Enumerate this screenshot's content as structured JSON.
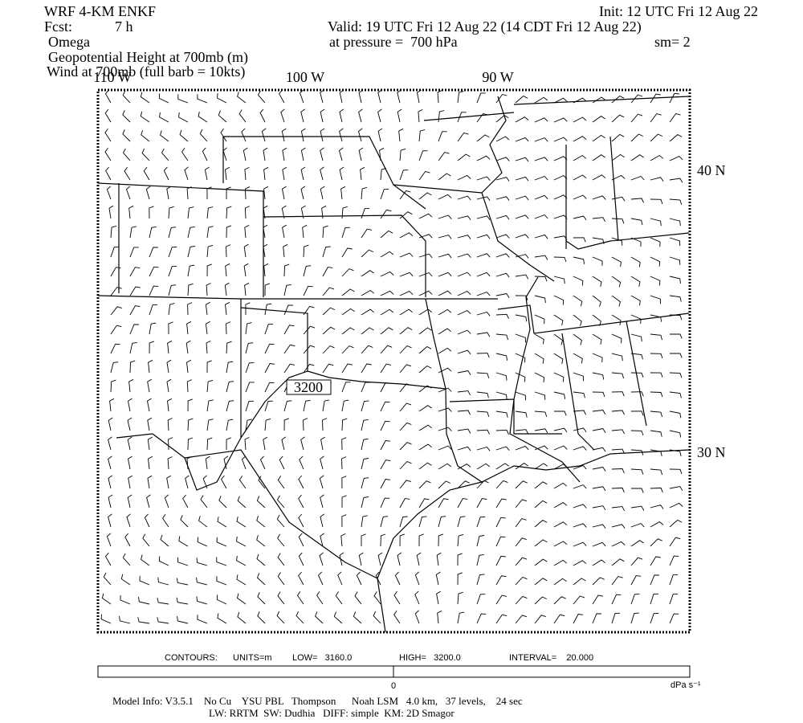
{
  "header": {
    "model": "WRF 4-KM ENKF",
    "init": "Init: 12 UTC Fri 12 Aug 22",
    "fcst_label": "Fcst:",
    "fcst_value": "7 h",
    "valid": "Valid: 19 UTC Fri 12 Aug 22 (14 CDT Fri 12 Aug 22)",
    "field": "Omega",
    "pressure": "at pressure =  700 hPa",
    "smoothing": "sm= 2",
    "contour_field": "Geopotential Height at 700mb (m)",
    "wind_field": "Wind at 700mb (full barb = 10kts)"
  },
  "map": {
    "longitude_labels": [
      "110 W",
      "100 W",
      "90 W"
    ],
    "latitude_labels": [
      "40 N",
      "30 N"
    ],
    "contour_labels": [
      "3200"
    ]
  },
  "contours": {
    "label": "CONTOURS:",
    "units": "UNITS=m",
    "low": "LOW=   3160.0",
    "high": "HIGH=   3200.0",
    "interval": "INTERVAL=    20.000"
  },
  "colorbar": {
    "tick_label": "0",
    "units": "dPa s⁻¹"
  },
  "footer": {
    "line1": "Model Info: V3.5.1    No Cu    YSU PBL   Thompson      Noah LSM   4.0 km,   37 levels,    24 sec",
    "line2": "LW: RRTM  SW: Dudhia   DIFF: simple  KM: 2D Smagor"
  }
}
